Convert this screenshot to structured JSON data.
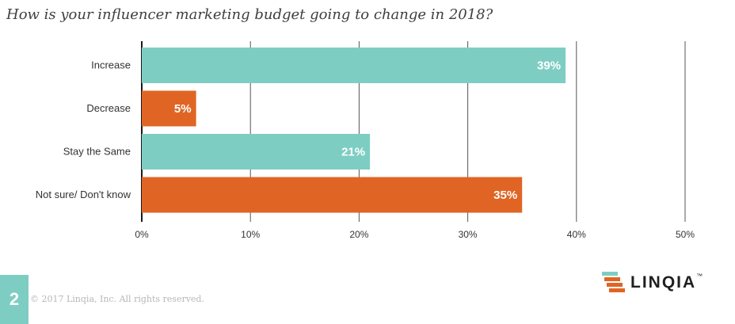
{
  "chart_data": {
    "type": "bar",
    "orientation": "horizontal",
    "title": "How is your influencer marketing budget going to change in 2018?",
    "categories": [
      "Increase",
      "Decrease",
      "Stay the Same",
      "Not sure/ Don't know"
    ],
    "values": [
      39,
      5,
      21,
      35
    ],
    "value_labels": [
      "39%",
      "5%",
      "21%",
      "35%"
    ],
    "bar_colors": [
      "#7ecdc3",
      "#e06524",
      "#7ecdc3",
      "#e06524"
    ],
    "xlim": [
      0,
      50
    ],
    "x_ticks": [
      0,
      10,
      20,
      30,
      40,
      50
    ],
    "x_tick_labels": [
      "0%",
      "10%",
      "20%",
      "30%",
      "40%",
      "50%"
    ],
    "grid": true,
    "xlabel": "",
    "ylabel": ""
  },
  "footer": {
    "page_number": "2",
    "copyright": "© 2017 Linqia, Inc. All rights reserved.",
    "logo_text": "LINQIA",
    "logo_mark": "™"
  },
  "colors": {
    "teal": "#7ecdc3",
    "orange": "#e06524",
    "grid": "#333333"
  }
}
